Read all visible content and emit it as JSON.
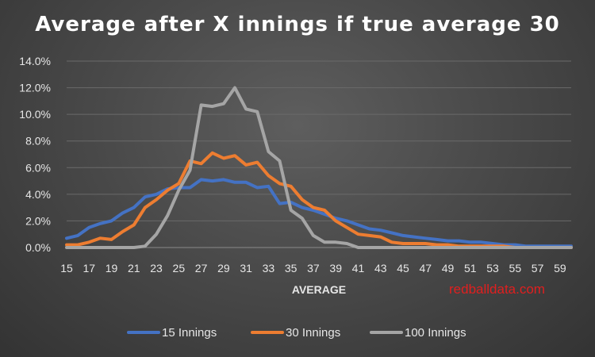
{
  "colors": {
    "series_15": "#4472c4",
    "series_30": "#ed7d31",
    "series_100": "#a5a5a5",
    "watermark": "#e01f1f"
  },
  "watermark": "redballdata.com",
  "chart_data": {
    "type": "line",
    "title": "Average after X innings if true average 30",
    "xlabel": "AVERAGE",
    "ylabel": "",
    "ylim": [
      0,
      0.14
    ],
    "y_ticks": [
      "0.0%",
      "2.0%",
      "4.0%",
      "6.0%",
      "8.0%",
      "10.0%",
      "12.0%",
      "14.0%"
    ],
    "x_tick_labels": [
      "15",
      "17",
      "19",
      "21",
      "23",
      "25",
      "27",
      "29",
      "31",
      "33",
      "35",
      "37",
      "39",
      "41",
      "43",
      "45",
      "47",
      "49",
      "51",
      "53",
      "55",
      "57",
      "59"
    ],
    "x": [
      15,
      16,
      17,
      18,
      19,
      20,
      21,
      22,
      23,
      24,
      25,
      26,
      27,
      28,
      29,
      30,
      31,
      32,
      33,
      34,
      35,
      36,
      37,
      38,
      39,
      40,
      41,
      42,
      43,
      44,
      45,
      46,
      47,
      48,
      49,
      50,
      51,
      52,
      53,
      54,
      55,
      56,
      57,
      58,
      59,
      60
    ],
    "legend_position": "bottom",
    "series": [
      {
        "name": "15 Innings",
        "values": [
          0.007,
          0.009,
          0.015,
          0.018,
          0.02,
          0.026,
          0.03,
          0.038,
          0.04,
          0.044,
          0.045,
          0.045,
          0.051,
          0.05,
          0.051,
          0.049,
          0.049,
          0.045,
          0.046,
          0.033,
          0.034,
          0.03,
          0.028,
          0.025,
          0.022,
          0.02,
          0.017,
          0.014,
          0.013,
          0.011,
          0.009,
          0.008,
          0.007,
          0.006,
          0.005,
          0.005,
          0.004,
          0.004,
          0.003,
          0.002,
          0.002,
          0.001,
          0.001,
          0.001,
          0.001,
          0.001
        ]
      },
      {
        "name": "30 Innings",
        "values": [
          0.002,
          0.002,
          0.004,
          0.007,
          0.006,
          0.012,
          0.017,
          0.03,
          0.036,
          0.043,
          0.048,
          0.065,
          0.063,
          0.071,
          0.067,
          0.069,
          0.062,
          0.064,
          0.054,
          0.048,
          0.046,
          0.036,
          0.03,
          0.028,
          0.02,
          0.015,
          0.01,
          0.009,
          0.008,
          0.004,
          0.003,
          0.003,
          0.003,
          0.002,
          0.002,
          0.001,
          0.001,
          0.001,
          0.001,
          0.001,
          0.0,
          0.0,
          0.0,
          0.0,
          0.0,
          0.0
        ]
      },
      {
        "name": "100 Innings",
        "values": [
          0.0,
          0.0,
          0.0,
          0.0,
          0.0,
          0.0,
          0.0,
          0.001,
          0.01,
          0.024,
          0.043,
          0.058,
          0.107,
          0.106,
          0.108,
          0.12,
          0.104,
          0.102,
          0.072,
          0.065,
          0.028,
          0.022,
          0.009,
          0.004,
          0.004,
          0.003,
          0.0,
          0.0,
          0.0,
          0.0,
          0.0,
          0.0,
          0.0,
          0.0,
          0.0,
          0.0,
          0.0,
          0.0,
          0.0,
          0.0,
          0.0,
          0.0,
          0.0,
          0.0,
          0.0,
          0.0
        ]
      }
    ]
  }
}
